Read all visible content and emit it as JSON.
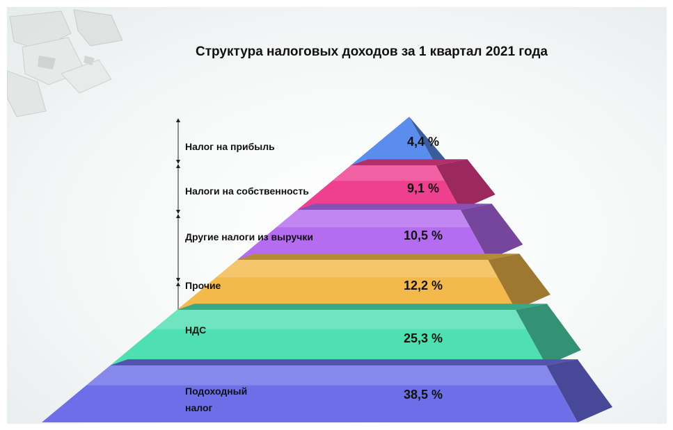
{
  "colors": {
    "tier_1": "#5b8dee",
    "tier_2": "#ef3f8f",
    "tier_3": "#b46cf0",
    "tier_4": "#f3b94b",
    "tier_5": "#4fe0b1",
    "tier_6": "#6d6ee8"
  },
  "decoration": "paper-sheets-corner",
  "chart_data": {
    "type": "pyramid",
    "title": "Структура налоговых доходов за 1 квартал 2021 года",
    "unit": "%",
    "categories": [
      "Налог на прибыль",
      "Налоги на собственность",
      "Другие налоги из выручки",
      "Прочие",
      "НДС",
      "Подоходный налог"
    ],
    "values": [
      4.4,
      9.1,
      10.5,
      12.2,
      25.3,
      38.5
    ],
    "value_labels": [
      "4,4 %",
      "9,1 %",
      "10,5 %",
      "12,2 %",
      "25,3 %",
      "38,5 %"
    ],
    "category_label_lines": [
      [
        "Налог на прибыль"
      ],
      [
        "Налоги на собственность"
      ],
      [
        "Другие налоги из выручки"
      ],
      [
        "Прочие"
      ],
      [
        "НДС"
      ],
      [
        "Подоходный",
        "налог"
      ]
    ]
  }
}
